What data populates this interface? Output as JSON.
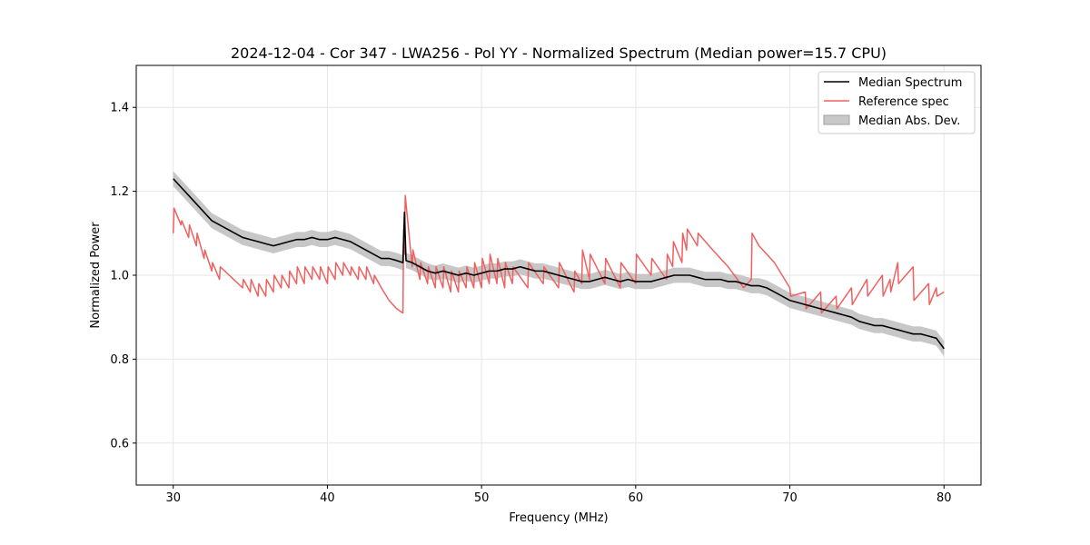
{
  "chart_data": {
    "type": "line",
    "title": "2024-12-04 - Cor 347 - LWA256 - Pol YY - Normalized Spectrum (Median power=15.7 CPU)",
    "xlabel": "Frequency (MHz)",
    "ylabel": "Normalized Power",
    "xlim": [
      27.6,
      82.4
    ],
    "ylim": [
      0.5,
      1.5
    ],
    "xticks": [
      30,
      40,
      50,
      60,
      70,
      80
    ],
    "yticks": [
      0.6,
      0.8,
      1.0,
      1.2,
      1.4
    ],
    "xtick_labels": [
      "30",
      "40",
      "50",
      "60",
      "70",
      "80"
    ],
    "ytick_labels": [
      "0.6",
      "0.8",
      "1.0",
      "1.2",
      "1.4"
    ],
    "grid": true,
    "legend_position": "top-right",
    "legend": [
      "Median Spectrum",
      "Reference spec",
      "Median Abs. Dev."
    ],
    "series": [
      {
        "name": "Median Spectrum",
        "color": "#000000",
        "x": [
          30,
          30.5,
          31,
          31.5,
          32,
          32.5,
          33,
          33.5,
          34,
          34.5,
          35,
          35.5,
          36,
          36.5,
          37,
          37.5,
          38,
          38.5,
          39,
          39.5,
          40,
          40.5,
          41,
          41.5,
          42,
          42.5,
          43,
          43.5,
          44,
          44.5,
          44.9,
          45,
          45.1,
          45.5,
          46,
          46.5,
          47,
          47.5,
          48,
          48.5,
          49,
          49.5,
          50,
          50.5,
          51,
          51.5,
          52,
          52.5,
          53,
          53.5,
          54,
          54.5,
          55,
          55.5,
          56,
          56.5,
          57,
          57.5,
          58,
          58.5,
          59,
          59.5,
          60,
          60.5,
          61,
          61.5,
          62,
          62.5,
          63,
          63.5,
          64,
          64.5,
          65,
          65.5,
          66,
          66.5,
          67,
          67.5,
          68,
          68.5,
          69,
          69.5,
          70,
          70.5,
          71,
          71.5,
          72,
          72.5,
          73,
          73.5,
          74,
          74.5,
          75,
          75.5,
          76,
          76.5,
          77,
          77.5,
          78,
          78.5,
          79,
          79.5,
          80
        ],
        "values": [
          1.23,
          1.21,
          1.19,
          1.17,
          1.15,
          1.13,
          1.12,
          1.11,
          1.1,
          1.09,
          1.085,
          1.08,
          1.075,
          1.07,
          1.075,
          1.08,
          1.085,
          1.085,
          1.09,
          1.085,
          1.085,
          1.09,
          1.085,
          1.08,
          1.07,
          1.06,
          1.05,
          1.04,
          1.04,
          1.035,
          1.03,
          1.15,
          1.035,
          1.03,
          1.02,
          1.01,
          1.005,
          1.01,
          1.005,
          1.0,
          1.005,
          1.0,
          1.005,
          1.01,
          1.01,
          1.015,
          1.015,
          1.02,
          1.015,
          1.01,
          1.01,
          1.005,
          1.0,
          0.995,
          0.99,
          0.985,
          0.985,
          0.99,
          0.995,
          0.99,
          0.985,
          0.99,
          0.985,
          0.985,
          0.985,
          0.99,
          0.995,
          1.0,
          1.0,
          1.0,
          0.995,
          0.99,
          0.99,
          0.99,
          0.985,
          0.985,
          0.98,
          0.975,
          0.975,
          0.97,
          0.96,
          0.95,
          0.94,
          0.935,
          0.93,
          0.925,
          0.92,
          0.915,
          0.91,
          0.905,
          0.9,
          0.89,
          0.885,
          0.88,
          0.88,
          0.875,
          0.87,
          0.865,
          0.86,
          0.86,
          0.855,
          0.85,
          0.825
        ]
      },
      {
        "name": "Reference spec",
        "color": "#f06060",
        "x": [
          30,
          30.05,
          30.5,
          30.55,
          31,
          31.05,
          31.5,
          31.55,
          32,
          32.05,
          32.5,
          32.55,
          33,
          33.05,
          34.5,
          34.55,
          35,
          35.05,
          35.5,
          35.55,
          36,
          36.05,
          36.5,
          36.55,
          37,
          37.05,
          37.5,
          37.55,
          38,
          38.05,
          38.5,
          38.55,
          39,
          39.05,
          39.5,
          39.55,
          40,
          40.05,
          40.5,
          40.55,
          41,
          41.05,
          41.5,
          41.55,
          42,
          42.05,
          42.5,
          42.55,
          43,
          43.05,
          43.5,
          44,
          44.5,
          44.9,
          44.95,
          45,
          45.05,
          45.5,
          45.55,
          46,
          46.05,
          46.5,
          46.55,
          47,
          47.05,
          47.5,
          47.55,
          48,
          48.05,
          48.5,
          48.55,
          49,
          49.05,
          49.5,
          49.55,
          50,
          50.05,
          50.5,
          50.55,
          51,
          51.05,
          51.5,
          51.55,
          52,
          52.05,
          53,
          53.05,
          54,
          54.05,
          55,
          55.05,
          56,
          56.05,
          56.5,
          56.55,
          57,
          57.05,
          58,
          58.05,
          59,
          59.05,
          60,
          60.05,
          61,
          61.05,
          62,
          62.05,
          62.4,
          62.45,
          63,
          63.05,
          63.3,
          63.35,
          64,
          64.05,
          65,
          66,
          67,
          67.5,
          67.55,
          68,
          69,
          70,
          70.05,
          71,
          71.05,
          72,
          72.05,
          73,
          73.05,
          74,
          74.05,
          75,
          75.05,
          76,
          76.05,
          76.5,
          76.55,
          77,
          77.05,
          78,
          78.05,
          79,
          79.05,
          79.5,
          79.55,
          80
        ],
        "values": [
          1.1,
          1.16,
          1.12,
          1.13,
          1.09,
          1.12,
          1.07,
          1.1,
          1.04,
          1.06,
          1.01,
          1.03,
          0.99,
          1.02,
          0.97,
          0.99,
          0.96,
          0.99,
          0.95,
          0.98,
          0.95,
          0.99,
          0.96,
          1.0,
          0.97,
          1.0,
          0.97,
          1.01,
          0.98,
          1.02,
          0.98,
          1.02,
          0.99,
          1.02,
          0.99,
          1.02,
          0.98,
          1.02,
          0.99,
          1.03,
          1.0,
          1.03,
          1.0,
          1.02,
          0.99,
          1.02,
          0.99,
          1.02,
          0.98,
          1.0,
          0.97,
          0.94,
          0.92,
          0.91,
          1.11,
          1.05,
          1.19,
          1.02,
          1.06,
          0.99,
          1.03,
          0.98,
          1.02,
          0.97,
          1.02,
          0.97,
          1.02,
          0.96,
          1.01,
          0.96,
          1.01,
          0.97,
          1.02,
          0.97,
          1.03,
          0.97,
          1.04,
          0.98,
          1.05,
          0.98,
          1.04,
          0.97,
          1.03,
          0.98,
          1.02,
          0.97,
          1.03,
          0.98,
          1.02,
          0.97,
          1.03,
          0.96,
          1.01,
          0.98,
          1.06,
          0.99,
          1.05,
          0.98,
          1.04,
          0.97,
          1.03,
          0.98,
          1.05,
          1.0,
          1.04,
          0.99,
          1.05,
          1.02,
          1.08,
          1.03,
          1.1,
          1.06,
          1.11,
          1.07,
          1.1,
          1.06,
          1.02,
          0.97,
          0.99,
          1.1,
          1.07,
          1.03,
          0.97,
          0.95,
          0.96,
          0.92,
          0.96,
          0.91,
          0.95,
          0.92,
          0.97,
          0.93,
          0.99,
          0.95,
          1.0,
          0.95,
          0.99,
          0.96,
          1.03,
          0.98,
          1.02,
          0.94,
          0.98,
          0.93,
          0.97,
          0.95,
          0.96
        ]
      }
    ],
    "band": {
      "name": "Median Abs. Dev.",
      "color": "#bdbdbd",
      "of_series": "Median Spectrum",
      "half_width": 0.018
    }
  }
}
